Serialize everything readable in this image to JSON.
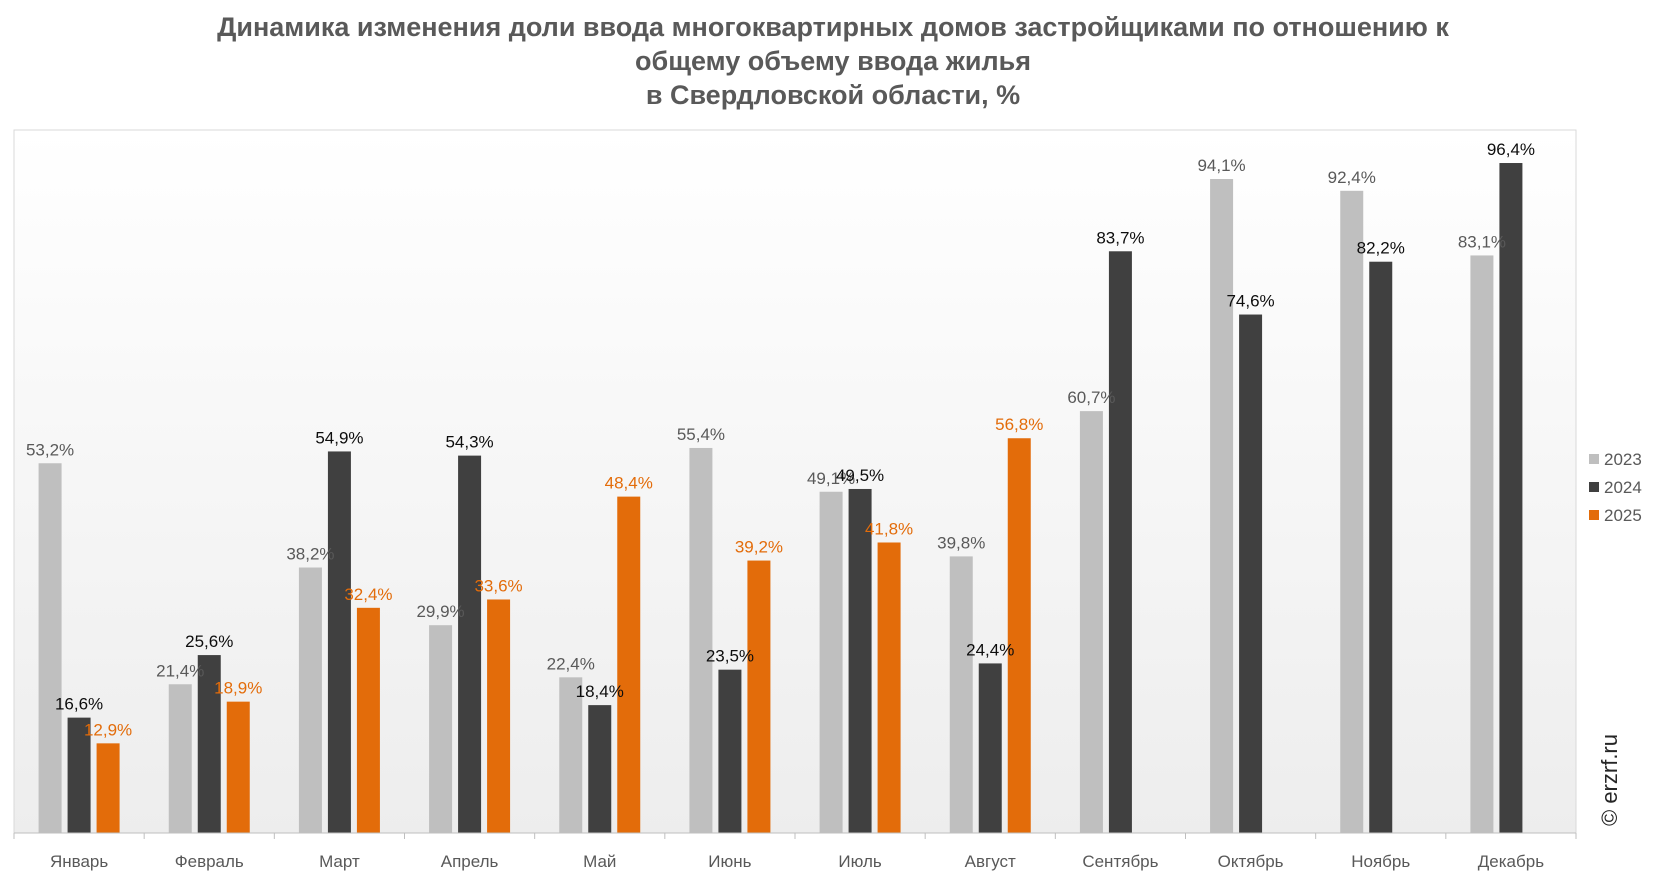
{
  "title_lines": [
    "Динамика изменения доли ввода многоквартирных домов застройщиками по отношению к",
    "общему объему ввода жилья",
    "в Свердловской области, %"
  ],
  "watermark": "© erzrf.ru",
  "chart_data": {
    "type": "bar",
    "title": "Динамика изменения доли ввода многоквартирных домов застройщиками по отношению к общему объему ввода жилья в Свердловской области, %",
    "categories": [
      "Январь",
      "Февраль",
      "Март",
      "Апрель",
      "Май",
      "Июнь",
      "Июль",
      "Август",
      "Сентябрь",
      "Октябрь",
      "Ноябрь",
      "Декабрь"
    ],
    "series": [
      {
        "name": "2023",
        "color": "#bfbfbf",
        "label_color": "#595959",
        "values": [
          53.2,
          21.4,
          38.2,
          29.9,
          22.4,
          55.4,
          49.1,
          39.8,
          60.7,
          94.1,
          92.4,
          83.1
        ],
        "labels": [
          "53,2%",
          "21,4%",
          "38,2%",
          "29,9%",
          "22,4%",
          "55,4%",
          "49,1%",
          "39,8%",
          "60,7%",
          "94,1%",
          "92,4%",
          "83,1%"
        ]
      },
      {
        "name": "2024",
        "color": "#404040",
        "label_color": "#0d0d0d",
        "values": [
          16.6,
          25.6,
          54.9,
          54.3,
          18.4,
          23.5,
          49.5,
          24.4,
          83.7,
          74.6,
          82.2,
          96.4
        ],
        "labels": [
          "16,6%",
          "25,6%",
          "54,9%",
          "54,3%",
          "18,4%",
          "23,5%",
          "49,5%",
          "24,4%",
          "83,7%",
          "74,6%",
          "82,2%",
          "96,4%"
        ]
      },
      {
        "name": "2025",
        "color": "#e36c0a",
        "label_color": "#e36c0a",
        "values": [
          12.9,
          18.9,
          32.4,
          33.6,
          48.4,
          39.2,
          41.8,
          56.8,
          null,
          null,
          null,
          null
        ],
        "labels": [
          "12,9%",
          "18,9%",
          "32,4%",
          "33,6%",
          "48,4%",
          "39,2%",
          "41,8%",
          "56,8%",
          null,
          null,
          null,
          null
        ]
      }
    ],
    "ylim": [
      0,
      110
    ],
    "grid": false,
    "legend_position": "right"
  }
}
